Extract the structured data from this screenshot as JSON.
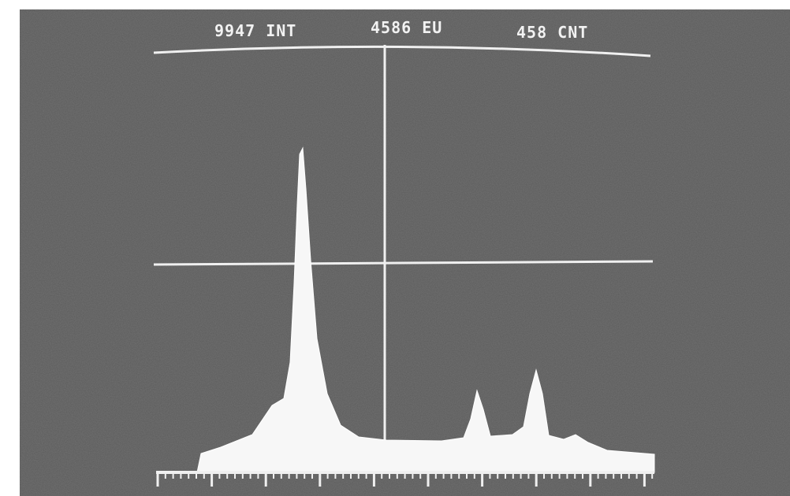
{
  "display": {
    "readouts": [
      "9947 INT",
      "4586 EU",
      "458 CNT"
    ]
  }
}
